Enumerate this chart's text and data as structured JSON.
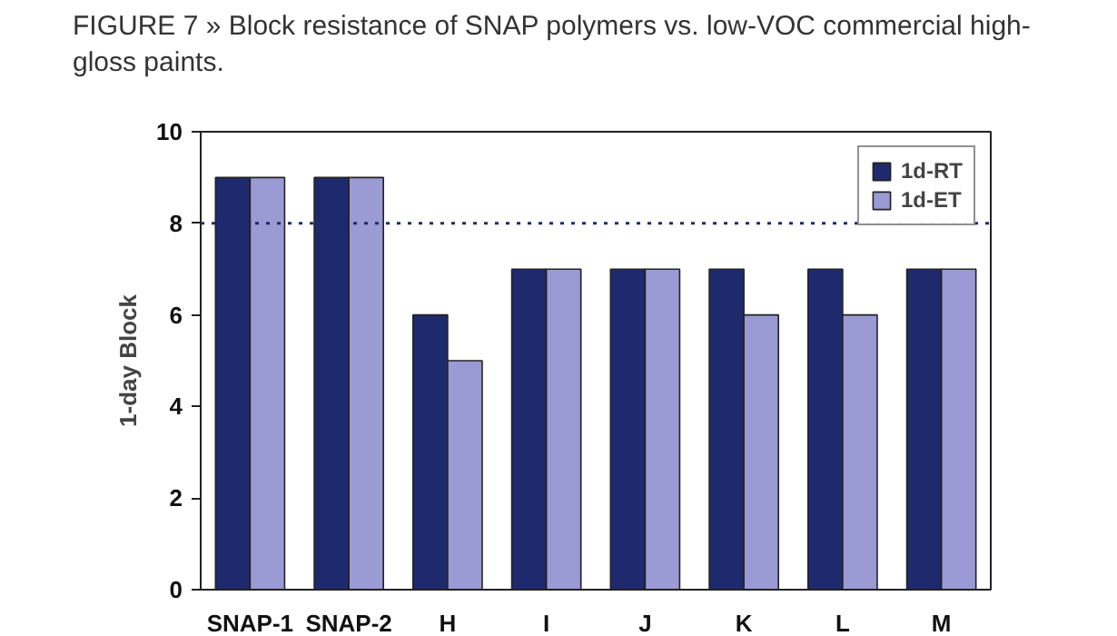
{
  "chart_data": {
    "type": "bar",
    "title": "FIGURE 7 » Block resistance of SNAP polymers vs. low-VOC commercial high-gloss paints.",
    "ylabel": "1-day Block",
    "categories": [
      "SNAP-1",
      "SNAP-2",
      "H",
      "I",
      "J",
      "K",
      "L",
      "M"
    ],
    "series": [
      {
        "name": "1d-RT",
        "color": "#1f2a6e",
        "values": [
          9,
          9,
          6,
          7,
          7,
          7,
          7,
          7
        ]
      },
      {
        "name": "1d-ET",
        "color": "#9a9ad4",
        "values": [
          9,
          9,
          5,
          7,
          7,
          6,
          6,
          7
        ]
      }
    ],
    "ylim": [
      0,
      10
    ],
    "yticks": [
      0,
      2,
      4,
      6,
      8,
      10
    ],
    "grid": false,
    "legend": "top right",
    "ref_lines": [
      {
        "axis": "y",
        "value": 8,
        "color": "#1f2a6e",
        "line_style": "dotted"
      }
    ]
  }
}
